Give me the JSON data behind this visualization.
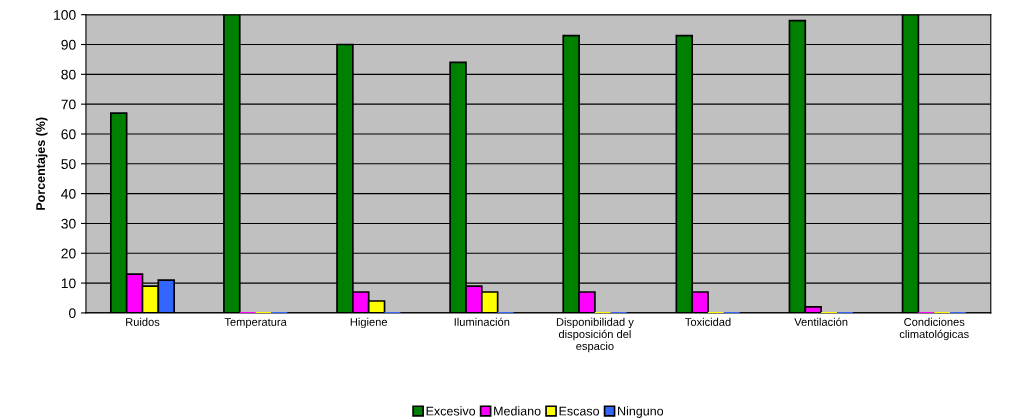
{
  "chart_data": {
    "type": "bar",
    "categories": [
      "Ruidos",
      "Temperatura",
      "Higiene",
      "Iluminación",
      "Disponibilidad y disposición del espacio",
      "Toxicidad",
      "Ventilación",
      "Condiciones climatológicas"
    ],
    "series": [
      {
        "name": "Excesivo",
        "color": "#008000",
        "values": [
          67,
          100,
          90,
          84,
          93,
          93,
          98,
          100
        ]
      },
      {
        "name": "Mediano",
        "color": "#ff00ff",
        "values": [
          13,
          0,
          7,
          9,
          7,
          7,
          2,
          0
        ]
      },
      {
        "name": "Escaso",
        "color": "#ffff00",
        "values": [
          9,
          0,
          4,
          7,
          0,
          0,
          0,
          0
        ]
      },
      {
        "name": "Ninguno",
        "color": "#3366ff",
        "values": [
          11,
          0,
          0,
          0,
          0,
          0,
          0,
          0
        ]
      }
    ],
    "ylabel": "Porcentajes (%)",
    "ylim": [
      0,
      100
    ],
    "yticks": [
      0,
      10,
      20,
      30,
      40,
      50,
      60,
      70,
      80,
      90,
      100
    ],
    "grid": "y",
    "legend": "bottom"
  }
}
